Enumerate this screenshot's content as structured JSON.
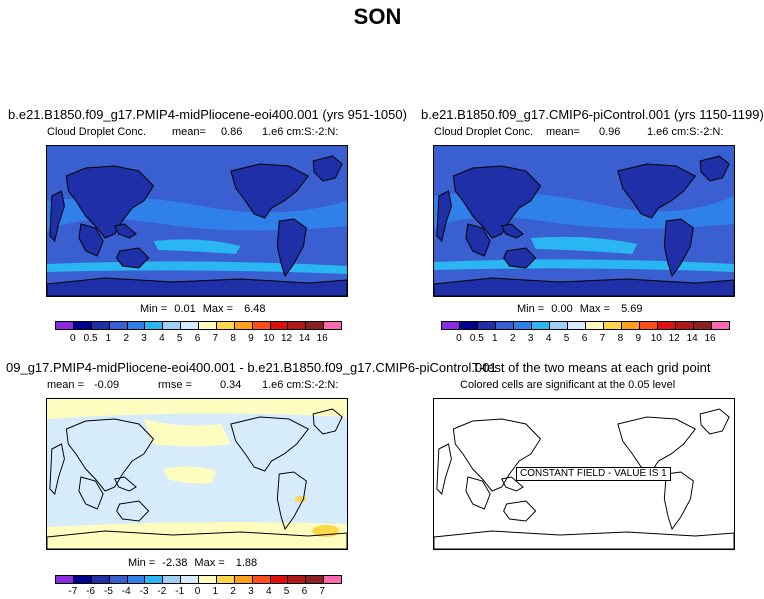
{
  "title": "SON",
  "panels": {
    "top_left": {
      "case": "b.e21.B1850.f09_g17.PMIP4-midPliocene-eoi400.001 (yrs 951-1050)",
      "variable": "Cloud Droplet Conc.",
      "mean_label": "mean=",
      "mean": "0.86",
      "units": "1.e6 cm:S:-2:N:",
      "min_label": "Min =",
      "min": "0.01",
      "max_label": "Max =",
      "max": "6.48"
    },
    "top_right": {
      "case": "b.e21.B1850.f09_g17.CMIP6-piControl.001 (yrs 1150-1199)",
      "variable": "Cloud Droplet Conc.",
      "mean_label": "mean=",
      "mean": "0.96",
      "units": "1.e6 cm:S:-2:N:",
      "min_label": "Min =",
      "min": "0.00",
      "max_label": "Max =",
      "max": "5.69"
    },
    "bottom_left": {
      "case": "09_g17.PMIP4-midPliocene-eoi400.001 - b.e21.B1850.f09_g17.CMIP6-piControl.001",
      "mean_label": "mean =",
      "mean": "-0.09",
      "rmse_label": "rmse =",
      "rmse": "0.34",
      "units": "1.e6 cm:S:-2:N:",
      "min_label": "Min =",
      "min": "-2.38",
      "max_label": "Max =",
      "max": "1.88"
    },
    "bottom_right": {
      "title": "T-test of the two means at each grid point",
      "subtitle": "Colored cells are significant at the 0.05 level",
      "constant_field": "CONSTANT FIELD - VALUE IS 1"
    }
  },
  "colorbars": {
    "absolute": {
      "labels": [
        "0",
        "0.5",
        "1",
        "2",
        "3",
        "4",
        "5",
        "6",
        "7",
        "8",
        "9",
        "10",
        "12",
        "14",
        "16"
      ],
      "colors": [
        "#8a2be2",
        "#00008b",
        "#1e2fa8",
        "#3a5fd0",
        "#2f80e8",
        "#29b6f2",
        "#9fd0f2",
        "#d6ecfb",
        "#fffcc0",
        "#ffd54a",
        "#ff9f1a",
        "#ff4d1a",
        "#e01010",
        "#b01818",
        "#8c2020",
        "#ff69b4"
      ]
    },
    "difference": {
      "labels": [
        "-7",
        "-6",
        "-5",
        "-4",
        "-3",
        "-2",
        "-1",
        "0",
        "1",
        "2",
        "3",
        "4",
        "5",
        "6",
        "7"
      ],
      "colors": [
        "#8a2be2",
        "#00008b",
        "#1e2fa8",
        "#3a5fd0",
        "#2f80e8",
        "#29b6f2",
        "#9fd0f2",
        "#d6ecfb",
        "#fffcc0",
        "#ffd54a",
        "#ff9f1a",
        "#ff4d1a",
        "#e01010",
        "#b01818",
        "#8c2020",
        "#ff69b4"
      ]
    }
  },
  "map_colors": {
    "abs_background": "#3a5fd0",
    "abs_land": "#1e2fa8",
    "abs_light": "#2f80e8",
    "abs_lighter": "#29b6f2",
    "diff_background": "#d6ecfb",
    "diff_positive": "#fffcc0",
    "diff_strong": "#ffd54a"
  }
}
